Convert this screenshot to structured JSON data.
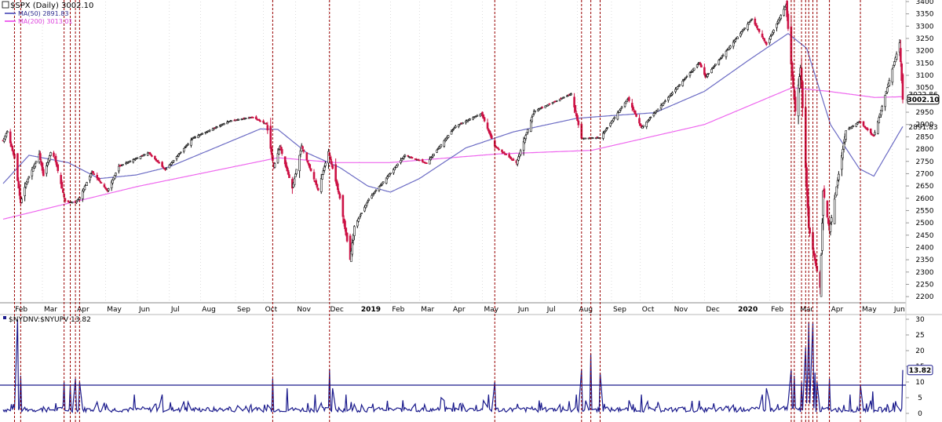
{
  "chart_data": [
    {
      "type": "candlestick",
      "title": "$SPX (Daily) 3002.10",
      "legend": [
        {
          "label": "MA(50) 2891.83",
          "color": "#6b6bc4"
        },
        {
          "label": "MA(200) 3013.01",
          "color": "#ee66ee"
        }
      ],
      "ylim": [
        2175,
        3400
      ],
      "yticks": [
        3400,
        3350,
        3300,
        3250,
        3200,
        3150,
        3100,
        3050,
        3000,
        2950,
        2900,
        2850,
        2800,
        2750,
        2700,
        2650,
        2600,
        2550,
        2500,
        2450,
        2400,
        2350,
        2300,
        2250,
        2200
      ],
      "x_month_labels": [
        {
          "date": "2018-02-01",
          "label": "Feb"
        },
        {
          "date": "2018-03-01",
          "label": "Mar"
        },
        {
          "date": "2018-04-02",
          "label": "Apr"
        },
        {
          "date": "2018-05-01",
          "label": "May"
        },
        {
          "date": "2018-06-01",
          "label": "Jun"
        },
        {
          "date": "2018-07-02",
          "label": "Jul"
        },
        {
          "date": "2018-08-01",
          "label": "Aug"
        },
        {
          "date": "2018-09-04",
          "label": "Sep"
        },
        {
          "date": "2018-10-01",
          "label": "Oct"
        },
        {
          "date": "2018-11-01",
          "label": "Nov"
        },
        {
          "date": "2018-12-03",
          "label": "Dec"
        },
        {
          "date": "2019-01-02",
          "label": "2019",
          "bold": true
        },
        {
          "date": "2019-02-01",
          "label": "Feb"
        },
        {
          "date": "2019-03-01",
          "label": "Mar"
        },
        {
          "date": "2019-04-01",
          "label": "Apr"
        },
        {
          "date": "2019-05-01",
          "label": "May"
        },
        {
          "date": "2019-06-03",
          "label": "Jun"
        },
        {
          "date": "2019-07-01",
          "label": "Jul"
        },
        {
          "date": "2019-08-01",
          "label": "Aug"
        },
        {
          "date": "2019-09-03",
          "label": "Sep"
        },
        {
          "date": "2019-10-01",
          "label": "Oct"
        },
        {
          "date": "2019-11-01",
          "label": "Nov"
        },
        {
          "date": "2019-12-02",
          "label": "Dec"
        },
        {
          "date": "2020-01-02",
          "label": "2020",
          "bold": true
        },
        {
          "date": "2020-02-03",
          "label": "Feb"
        },
        {
          "date": "2020-03-02",
          "label": "Mar"
        },
        {
          "date": "2020-04-01",
          "label": "Apr"
        },
        {
          "date": "2020-05-01",
          "label": "May"
        },
        {
          "date": "2020-06-01",
          "label": "Jun"
        }
      ],
      "price_path": [
        {
          "date": "2018-01-22",
          "value": 2835
        },
        {
          "date": "2018-01-26",
          "value": 2872
        },
        {
          "date": "2018-02-02",
          "value": 2762
        },
        {
          "date": "2018-02-08",
          "value": 2581
        },
        {
          "date": "2018-02-13",
          "value": 2660
        },
        {
          "date": "2018-02-26",
          "value": 2779
        },
        {
          "date": "2018-03-02",
          "value": 2691
        },
        {
          "date": "2018-03-09",
          "value": 2786
        },
        {
          "date": "2018-03-13",
          "value": 2765
        },
        {
          "date": "2018-03-23",
          "value": 2588
        },
        {
          "date": "2018-04-02",
          "value": 2582
        },
        {
          "date": "2018-04-06",
          "value": 2604
        },
        {
          "date": "2018-04-18",
          "value": 2708
        },
        {
          "date": "2018-05-03",
          "value": 2630
        },
        {
          "date": "2018-05-14",
          "value": 2730
        },
        {
          "date": "2018-06-12",
          "value": 2786
        },
        {
          "date": "2018-06-28",
          "value": 2716
        },
        {
          "date": "2018-07-25",
          "value": 2846
        },
        {
          "date": "2018-08-29",
          "value": 2914
        },
        {
          "date": "2018-09-20",
          "value": 2930
        },
        {
          "date": "2018-10-04",
          "value": 2902
        },
        {
          "date": "2018-10-11",
          "value": 2728
        },
        {
          "date": "2018-10-17",
          "value": 2810
        },
        {
          "date": "2018-10-29",
          "value": 2641
        },
        {
          "date": "2018-11-07",
          "value": 2813
        },
        {
          "date": "2018-11-23",
          "value": 2633
        },
        {
          "date": "2018-12-03",
          "value": 2790
        },
        {
          "date": "2018-12-14",
          "value": 2600
        },
        {
          "date": "2018-12-24",
          "value": 2351
        },
        {
          "date": "2018-12-28",
          "value": 2485
        },
        {
          "date": "2019-01-11",
          "value": 2596
        },
        {
          "date": "2019-02-15",
          "value": 2775
        },
        {
          "date": "2019-03-08",
          "value": 2743
        },
        {
          "date": "2019-04-05",
          "value": 2893
        },
        {
          "date": "2019-04-30",
          "value": 2945
        },
        {
          "date": "2019-05-13",
          "value": 2812
        },
        {
          "date": "2019-06-03",
          "value": 2744
        },
        {
          "date": "2019-06-20",
          "value": 2954
        },
        {
          "date": "2019-07-26",
          "value": 3025
        },
        {
          "date": "2019-08-05",
          "value": 2844
        },
        {
          "date": "2019-08-23",
          "value": 2847
        },
        {
          "date": "2019-09-19",
          "value": 3006
        },
        {
          "date": "2019-10-02",
          "value": 2887
        },
        {
          "date": "2019-11-27",
          "value": 3153
        },
        {
          "date": "2019-12-03",
          "value": 3093
        },
        {
          "date": "2020-01-17",
          "value": 3330
        },
        {
          "date": "2020-01-31",
          "value": 3225
        },
        {
          "date": "2020-02-19",
          "value": 3386
        },
        {
          "date": "2020-02-28",
          "value": 2954
        },
        {
          "date": "2020-03-04",
          "value": 3130
        },
        {
          "date": "2020-03-12",
          "value": 2480
        },
        {
          "date": "2020-03-23",
          "value": 2237
        },
        {
          "date": "2020-03-26",
          "value": 2630
        },
        {
          "date": "2020-04-01",
          "value": 2470
        },
        {
          "date": "2020-04-17",
          "value": 2875
        },
        {
          "date": "2020-04-30",
          "value": 2912
        },
        {
          "date": "2020-05-14",
          "value": 2852
        },
        {
          "date": "2020-06-08",
          "value": 3232
        },
        {
          "date": "2020-06-11",
          "value": 3002
        }
      ],
      "ma50_path": [
        {
          "date": "2018-01-22",
          "value": 2660
        },
        {
          "date": "2018-02-16",
          "value": 2775
        },
        {
          "date": "2018-03-26",
          "value": 2745
        },
        {
          "date": "2018-04-25",
          "value": 2680
        },
        {
          "date": "2018-05-31",
          "value": 2695
        },
        {
          "date": "2018-07-02",
          "value": 2728
        },
        {
          "date": "2018-08-15",
          "value": 2805
        },
        {
          "date": "2018-09-28",
          "value": 2882
        },
        {
          "date": "2018-10-15",
          "value": 2880
        },
        {
          "date": "2018-11-12",
          "value": 2785
        },
        {
          "date": "2018-12-14",
          "value": 2725
        },
        {
          "date": "2019-01-10",
          "value": 2650
        },
        {
          "date": "2019-02-01",
          "value": 2625
        },
        {
          "date": "2019-03-01",
          "value": 2680
        },
        {
          "date": "2019-04-15",
          "value": 2805
        },
        {
          "date": "2019-05-31",
          "value": 2870
        },
        {
          "date": "2019-07-31",
          "value": 2925
        },
        {
          "date": "2019-08-30",
          "value": 2935
        },
        {
          "date": "2019-10-15",
          "value": 2948
        },
        {
          "date": "2019-12-02",
          "value": 3035
        },
        {
          "date": "2020-01-15",
          "value": 3165
        },
        {
          "date": "2020-02-21",
          "value": 3270
        },
        {
          "date": "2020-03-10",
          "value": 3210
        },
        {
          "date": "2020-04-02",
          "value": 2900
        },
        {
          "date": "2020-04-30",
          "value": 2720
        },
        {
          "date": "2020-05-14",
          "value": 2690
        },
        {
          "date": "2020-06-11",
          "value": 2891.83
        }
      ],
      "ma200_path": [
        {
          "date": "2018-01-22",
          "value": 2515
        },
        {
          "date": "2018-06-01",
          "value": 2648
        },
        {
          "date": "2018-10-15",
          "value": 2765
        },
        {
          "date": "2018-12-10",
          "value": 2745
        },
        {
          "date": "2019-01-31",
          "value": 2745
        },
        {
          "date": "2019-05-15",
          "value": 2780
        },
        {
          "date": "2019-08-15",
          "value": 2795
        },
        {
          "date": "2019-12-02",
          "value": 2900
        },
        {
          "date": "2020-02-25",
          "value": 3050
        },
        {
          "date": "2020-03-31",
          "value": 3035
        },
        {
          "date": "2020-05-15",
          "value": 3010
        },
        {
          "date": "2020-06-11",
          "value": 3013.01
        }
      ],
      "price_labels": [
        {
          "value": 3022.86,
          "text": "3022.86"
        },
        {
          "value": 3002.1,
          "text": "3002.10",
          "boxed": true
        },
        {
          "value": 2891.83,
          "text": "2891.83"
        }
      ]
    },
    {
      "type": "line",
      "title": "$NYDNV:$NYUPV 13.82",
      "ylim": [
        -1.5,
        31
      ],
      "yticks": [
        30,
        25,
        20,
        15,
        10,
        5,
        0
      ],
      "threshold": 9,
      "last_value_label": "13.82",
      "line_color": "#1a1a8c",
      "spikes": [
        {
          "date": "2018-02-05",
          "value": 30
        },
        {
          "date": "2018-02-08",
          "value": 12
        },
        {
          "date": "2018-03-22",
          "value": 10
        },
        {
          "date": "2018-03-28",
          "value": 9
        },
        {
          "date": "2018-04-02",
          "value": 11
        },
        {
          "date": "2018-04-06",
          "value": 10
        },
        {
          "date": "2018-05-29",
          "value": 6
        },
        {
          "date": "2018-06-25",
          "value": 6
        },
        {
          "date": "2018-10-10",
          "value": 11
        },
        {
          "date": "2018-10-24",
          "value": 8
        },
        {
          "date": "2018-11-20",
          "value": 6
        },
        {
          "date": "2018-12-04",
          "value": 14
        },
        {
          "date": "2018-12-07",
          "value": 8
        },
        {
          "date": "2018-12-20",
          "value": 6
        },
        {
          "date": "2019-03-22",
          "value": 5
        },
        {
          "date": "2019-05-07",
          "value": 6
        },
        {
          "date": "2019-05-13",
          "value": 10
        },
        {
          "date": "2019-07-31",
          "value": 6
        },
        {
          "date": "2019-08-05",
          "value": 14
        },
        {
          "date": "2019-08-14",
          "value": 19
        },
        {
          "date": "2019-08-23",
          "value": 13
        },
        {
          "date": "2019-10-02",
          "value": 6
        },
        {
          "date": "2020-01-27",
          "value": 6
        },
        {
          "date": "2020-01-31",
          "value": 8
        },
        {
          "date": "2020-02-24",
          "value": 14
        },
        {
          "date": "2020-02-27",
          "value": 12
        },
        {
          "date": "2020-03-05",
          "value": 10
        },
        {
          "date": "2020-03-09",
          "value": 21
        },
        {
          "date": "2020-03-11",
          "value": 14
        },
        {
          "date": "2020-03-12",
          "value": 29
        },
        {
          "date": "2020-03-16",
          "value": 29
        },
        {
          "date": "2020-03-18",
          "value": 13
        },
        {
          "date": "2020-03-20",
          "value": 10
        },
        {
          "date": "2020-04-01",
          "value": 11
        },
        {
          "date": "2020-04-21",
          "value": 6
        },
        {
          "date": "2020-05-01",
          "value": 9
        },
        {
          "date": "2020-05-13",
          "value": 7
        },
        {
          "date": "2020-06-11",
          "value": 13.82
        }
      ]
    }
  ],
  "event_lines": [
    "2018-02-02",
    "2018-02-08",
    "2018-03-22",
    "2018-03-28",
    "2018-04-02",
    "2018-04-06",
    "2018-10-10",
    "2018-12-04",
    "2019-05-13",
    "2019-08-05",
    "2019-08-14",
    "2019-08-23",
    "2020-02-24",
    "2020-02-27",
    "2020-03-05",
    "2020-03-09",
    "2020-03-12",
    "2020-03-16",
    "2020-03-20",
    "2020-04-01",
    "2020-05-01"
  ],
  "colors": {
    "up": "#111111",
    "down": "#cc1144",
    "event_line": "#990000",
    "grid_dash": "#bbbbbb",
    "threshold": "#1a1a8c"
  }
}
